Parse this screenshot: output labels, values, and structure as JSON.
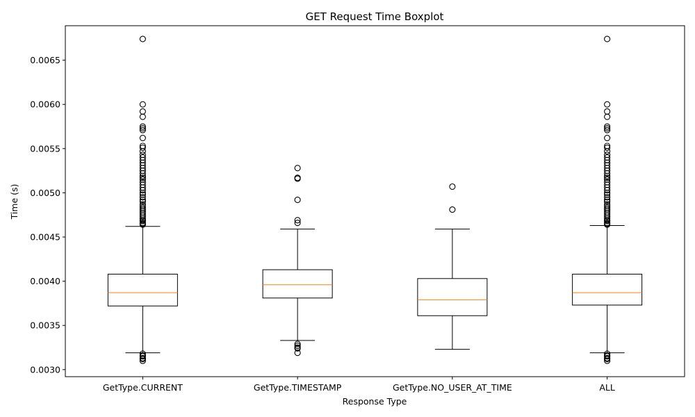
{
  "chart_data": {
    "type": "boxplot",
    "title": "GET Request Time Boxplot",
    "xlabel": "Response Type",
    "ylabel": "Time (s)",
    "ylim": [
      0.00292,
      0.00689
    ],
    "yticks": [
      "0.0030",
      "0.0035",
      "0.0040",
      "0.0045",
      "0.0050",
      "0.0055",
      "0.0060",
      "0.0065"
    ],
    "ytick_values": [
      0.003,
      0.0035,
      0.004,
      0.0045,
      0.005,
      0.0055,
      0.006,
      0.0065
    ],
    "grid": false,
    "categories": [
      "GetType.CURRENT",
      "GetType.TIMESTAMP",
      "GetType.NO_USER_AT_TIME",
      "ALL"
    ],
    "boxes": [
      {
        "label": "GetType.CURRENT",
        "whisker_low": 0.00319,
        "q1": 0.00372,
        "median": 0.00387,
        "q3": 0.00408,
        "whisker_high": 0.00462,
        "outliers": [
          0.00674,
          0.006,
          0.00592,
          0.00586,
          0.00575,
          0.00573,
          0.00571,
          0.00562,
          0.00553,
          0.00551,
          0.00547,
          0.00543,
          0.0054,
          0.00537,
          0.00534,
          0.00531,
          0.00528,
          0.00525,
          0.00522,
          0.00519,
          0.00517,
          0.00515,
          0.00512,
          0.00509,
          0.00506,
          0.00503,
          0.005,
          0.00498,
          0.00495,
          0.00492,
          0.0049,
          0.00487,
          0.00485,
          0.00483,
          0.00481,
          0.00479,
          0.00477,
          0.00475,
          0.00473,
          0.00471,
          0.00469,
          0.00468,
          0.00466,
          0.00465,
          0.00464,
          0.00318,
          0.00316,
          0.00315,
          0.00313,
          0.00312,
          0.0031
        ]
      },
      {
        "label": "GetType.TIMESTAMP",
        "whisker_low": 0.00333,
        "q1": 0.00381,
        "median": 0.00396,
        "q3": 0.00413,
        "whisker_high": 0.00459,
        "outliers": [
          0.00528,
          0.00517,
          0.00516,
          0.00492,
          0.00469,
          0.00466,
          0.00329,
          0.00327,
          0.00325,
          0.00324,
          0.00319
        ]
      },
      {
        "label": "GetType.NO_USER_AT_TIME",
        "whisker_low": 0.00323,
        "q1": 0.00361,
        "median": 0.00379,
        "q3": 0.00403,
        "whisker_high": 0.00459,
        "outliers": [
          0.00507,
          0.00481
        ]
      },
      {
        "label": "ALL",
        "whisker_low": 0.00319,
        "q1": 0.00373,
        "median": 0.00387,
        "q3": 0.00408,
        "whisker_high": 0.00463,
        "outliers": [
          0.00674,
          0.006,
          0.00592,
          0.00586,
          0.00575,
          0.00573,
          0.00571,
          0.00562,
          0.00553,
          0.00551,
          0.00547,
          0.00543,
          0.0054,
          0.00537,
          0.00534,
          0.00531,
          0.00528,
          0.00525,
          0.00522,
          0.00519,
          0.00517,
          0.00515,
          0.00512,
          0.00509,
          0.00506,
          0.00503,
          0.005,
          0.00498,
          0.00495,
          0.00492,
          0.0049,
          0.00487,
          0.00485,
          0.00483,
          0.00481,
          0.00479,
          0.00477,
          0.00475,
          0.00473,
          0.00471,
          0.00469,
          0.00468,
          0.00466,
          0.00465,
          0.00464,
          0.00318,
          0.00316,
          0.00315,
          0.00313,
          0.00312,
          0.0031
        ]
      }
    ],
    "colors": {
      "box": "#000000",
      "median": "#ff7f0e",
      "outlier": "#000000",
      "background": "#ffffff"
    }
  }
}
